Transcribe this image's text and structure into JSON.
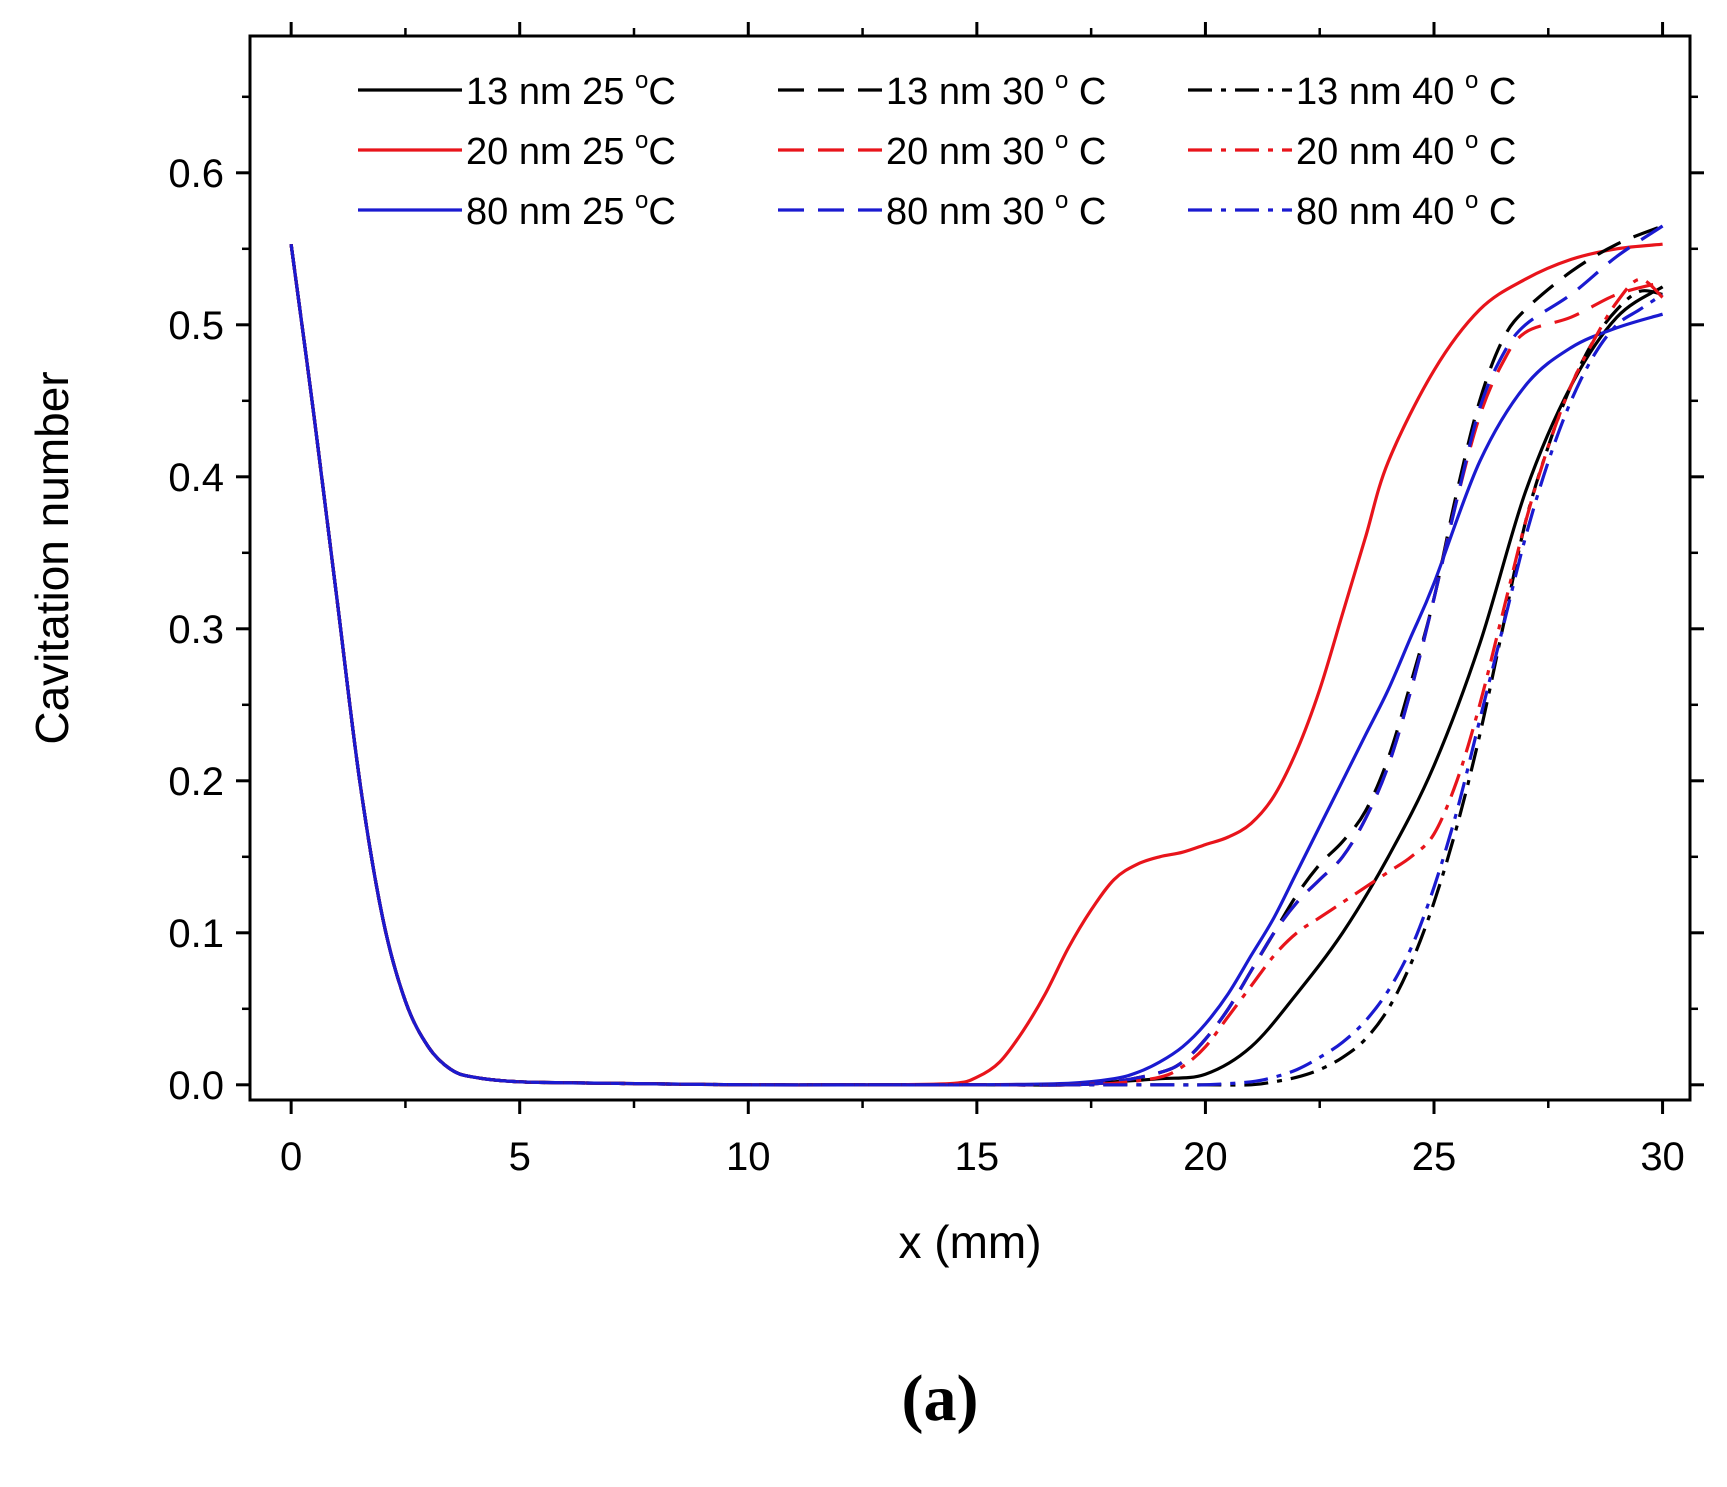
{
  "chart_data": {
    "type": "line",
    "xlabel": "x (mm)",
    "ylabel": "Cavitation number",
    "xlim": [
      -0.9,
      30.6
    ],
    "ylim": [
      -0.01,
      0.69
    ],
    "xticks": [
      0,
      5,
      10,
      15,
      20,
      25,
      30
    ],
    "xtick_labels": [
      "0",
      "5",
      "10",
      "15",
      "20",
      "25",
      "30"
    ],
    "yticks": [
      0.0,
      0.1,
      0.2,
      0.3,
      0.4,
      0.5,
      0.6
    ],
    "ytick_labels": [
      "0.0",
      "0.1",
      "0.2",
      "0.3",
      "0.4",
      "0.5",
      "0.6"
    ],
    "panel_label": "(a)",
    "legend_position": "top",
    "series": [
      {
        "name": "13 nm  25 °C",
        "label_main": "13 nm  25 ",
        "label_sup": "o",
        "label_unit": "C",
        "color": "#000000",
        "dash": "solid",
        "x": [
          0,
          0.5,
          1,
          1.5,
          2,
          2.5,
          3,
          3.5,
          4,
          5,
          7,
          10,
          13,
          15,
          17,
          18,
          19,
          20,
          21,
          22,
          23,
          24,
          25,
          26,
          27,
          28,
          29,
          30
        ],
        "y": [
          0.553,
          0.44,
          0.32,
          0.2,
          0.11,
          0.055,
          0.025,
          0.01,
          0.005,
          0.002,
          0.001,
          0.0,
          0.0,
          0.0,
          0.0,
          0.002,
          0.004,
          0.007,
          0.025,
          0.06,
          0.1,
          0.15,
          0.21,
          0.29,
          0.39,
          0.46,
          0.505,
          0.525
        ]
      },
      {
        "name": "20 nm  25 °C",
        "label_main": "20 nm  25 ",
        "label_sup": "o",
        "label_unit": "C",
        "color": "#e8141b",
        "dash": "solid",
        "x": [
          0,
          0.5,
          1,
          1.5,
          2,
          2.5,
          3,
          3.5,
          4,
          5,
          7,
          10,
          13,
          14.5,
          15,
          15.5,
          16,
          16.5,
          17,
          17.5,
          18,
          18.5,
          19,
          19.5,
          20,
          20.5,
          21,
          21.5,
          22,
          22.5,
          23,
          23.5,
          24,
          25,
          26,
          27,
          28,
          29,
          30
        ],
        "y": [
          0.553,
          0.44,
          0.32,
          0.2,
          0.11,
          0.055,
          0.025,
          0.01,
          0.005,
          0.002,
          0.001,
          0.0,
          0.0,
          0.001,
          0.005,
          0.015,
          0.035,
          0.06,
          0.09,
          0.115,
          0.135,
          0.145,
          0.15,
          0.153,
          0.158,
          0.163,
          0.172,
          0.19,
          0.22,
          0.26,
          0.31,
          0.36,
          0.41,
          0.47,
          0.51,
          0.53,
          0.543,
          0.55,
          0.553
        ]
      },
      {
        "name": "80 nm  25 °C",
        "label_main": "80 nm  25 ",
        "label_sup": "o",
        "label_unit": "C",
        "color": "#1a1ad0",
        "dash": "solid",
        "x": [
          0,
          0.5,
          1,
          1.5,
          2,
          2.5,
          3,
          3.5,
          4,
          5,
          7,
          10,
          13,
          15,
          17,
          18,
          18.5,
          19,
          19.5,
          20,
          20.5,
          21,
          21.5,
          22,
          22.5,
          23,
          23.5,
          24,
          24.5,
          25,
          26,
          27,
          28,
          29,
          30
        ],
        "y": [
          0.553,
          0.44,
          0.32,
          0.2,
          0.11,
          0.055,
          0.025,
          0.01,
          0.005,
          0.002,
          0.001,
          0.0,
          0.0,
          0.0,
          0.001,
          0.004,
          0.008,
          0.015,
          0.025,
          0.04,
          0.06,
          0.085,
          0.11,
          0.14,
          0.17,
          0.2,
          0.23,
          0.26,
          0.295,
          0.33,
          0.41,
          0.46,
          0.485,
          0.498,
          0.507
        ]
      },
      {
        "name": "13 nm  30 ° C",
        "label_main": "13 nm  30 ",
        "label_sup": "o",
        "label_unit": " C",
        "color": "#000000",
        "dash": "dashed",
        "x": [
          0,
          0.5,
          1,
          1.5,
          2,
          2.5,
          3,
          3.5,
          4,
          5,
          7,
          10,
          13,
          15,
          17,
          18,
          19,
          19.5,
          20,
          20.5,
          21,
          21.5,
          22,
          22.5,
          23,
          23.5,
          24,
          24.5,
          25,
          25.5,
          26,
          26.5,
          27,
          28,
          29,
          30
        ],
        "y": [
          0.553,
          0.44,
          0.32,
          0.2,
          0.11,
          0.055,
          0.025,
          0.01,
          0.005,
          0.002,
          0.001,
          0.0,
          0.0,
          0.0,
          0.0,
          0.002,
          0.008,
          0.015,
          0.03,
          0.05,
          0.075,
          0.1,
          0.125,
          0.145,
          0.16,
          0.18,
          0.215,
          0.265,
          0.32,
          0.39,
          0.45,
          0.49,
          0.51,
          0.535,
          0.553,
          0.565
        ]
      },
      {
        "name": "20 nm  30 ° C",
        "label_main": "20 nm  30 ",
        "label_sup": "o",
        "label_unit": " C",
        "color": "#e8141b",
        "dash": "dashed",
        "x": [
          0,
          0.5,
          1,
          1.5,
          2,
          2.5,
          3,
          3.5,
          4,
          5,
          7,
          10,
          13,
          15,
          17,
          18,
          19,
          19.5,
          20,
          20.5,
          21,
          21.5,
          22,
          22.5,
          23,
          23.5,
          24,
          24.5,
          25,
          25.5,
          26,
          26.5,
          27,
          28,
          29,
          30
        ],
        "y": [
          0.553,
          0.44,
          0.32,
          0.2,
          0.11,
          0.055,
          0.025,
          0.01,
          0.005,
          0.002,
          0.001,
          0.0,
          0.0,
          0.0,
          0.0,
          0.002,
          0.008,
          0.015,
          0.03,
          0.05,
          0.075,
          0.1,
          0.12,
          0.135,
          0.15,
          0.175,
          0.21,
          0.26,
          0.32,
          0.385,
          0.44,
          0.475,
          0.495,
          0.505,
          0.52,
          0.528
        ]
      },
      {
        "name": "80 nm  30 ° C",
        "label_main": "80 nm  30 ",
        "label_sup": "o",
        "label_unit": " C",
        "color": "#1a1ad0",
        "dash": "dashed",
        "x": [
          0,
          0.5,
          1,
          1.5,
          2,
          2.5,
          3,
          3.5,
          4,
          5,
          7,
          10,
          13,
          15,
          17,
          18,
          19,
          19.5,
          20,
          20.5,
          21,
          21.5,
          22,
          22.5,
          23,
          23.5,
          24,
          24.5,
          25,
          25.5,
          26,
          26.5,
          27,
          28,
          29,
          30
        ],
        "y": [
          0.553,
          0.44,
          0.32,
          0.2,
          0.11,
          0.055,
          0.025,
          0.01,
          0.005,
          0.002,
          0.001,
          0.0,
          0.0,
          0.0,
          0.0,
          0.002,
          0.008,
          0.015,
          0.03,
          0.05,
          0.075,
          0.1,
          0.12,
          0.135,
          0.15,
          0.175,
          0.21,
          0.26,
          0.32,
          0.385,
          0.445,
          0.48,
          0.5,
          0.52,
          0.545,
          0.565
        ]
      },
      {
        "name": "13 nm  40 ° C",
        "label_main": "13 nm  40 ",
        "label_sup": "o",
        "label_unit": " C",
        "color": "#000000",
        "dash": "dashdot",
        "x": [
          0,
          0.5,
          1,
          1.5,
          2,
          2.5,
          3,
          3.5,
          4,
          5,
          7,
          10,
          13,
          15,
          17,
          19,
          20,
          21,
          21.5,
          22,
          22.5,
          23,
          23.5,
          24,
          24.5,
          25,
          25.5,
          26,
          26.5,
          27,
          27.5,
          28,
          28.5,
          29,
          29.5,
          30
        ],
        "y": [
          0.553,
          0.44,
          0.32,
          0.2,
          0.11,
          0.055,
          0.025,
          0.01,
          0.005,
          0.002,
          0.001,
          0.0,
          0.0,
          0.0,
          0.0,
          0.0,
          0.0,
          0.0,
          0.002,
          0.005,
          0.01,
          0.018,
          0.03,
          0.05,
          0.08,
          0.12,
          0.17,
          0.23,
          0.3,
          0.37,
          0.42,
          0.46,
          0.49,
          0.51,
          0.522,
          0.52
        ]
      },
      {
        "name": "20 nm  40 ° C",
        "label_main": "20 nm  40 ",
        "label_sup": "o",
        "label_unit": " C",
        "color": "#e8141b",
        "dash": "dashdot",
        "x": [
          0,
          0.5,
          1,
          1.5,
          2,
          2.5,
          3,
          3.5,
          4,
          5,
          7,
          10,
          13,
          15,
          17,
          18,
          19,
          19.5,
          20,
          20.5,
          21,
          21.5,
          22,
          22.5,
          23,
          23.5,
          24,
          24.5,
          25,
          25.5,
          26,
          26.5,
          27,
          27.5,
          28,
          28.5,
          29,
          29.5,
          30
        ],
        "y": [
          0.553,
          0.44,
          0.32,
          0.2,
          0.11,
          0.055,
          0.025,
          0.01,
          0.005,
          0.002,
          0.001,
          0.0,
          0.0,
          0.0,
          0.0,
          0.001,
          0.005,
          0.012,
          0.025,
          0.045,
          0.065,
          0.085,
          0.1,
          0.11,
          0.12,
          0.13,
          0.14,
          0.15,
          0.165,
          0.2,
          0.25,
          0.31,
          0.37,
          0.42,
          0.46,
          0.49,
          0.515,
          0.53,
          0.518
        ]
      },
      {
        "name": "80 nm  40 ° C",
        "label_main": "80 nm  40 ",
        "label_sup": "o",
        "label_unit": " C",
        "color": "#1a1ad0",
        "dash": "dashdot",
        "x": [
          0,
          0.5,
          1,
          1.5,
          2,
          2.5,
          3,
          3.5,
          4,
          5,
          7,
          10,
          13,
          15,
          17,
          19,
          20,
          21,
          21.5,
          22,
          22.5,
          23,
          23.5,
          24,
          24.5,
          25,
          25.5,
          26,
          26.5,
          27,
          27.5,
          28,
          28.5,
          29,
          29.5,
          30
        ],
        "y": [
          0.553,
          0.44,
          0.32,
          0.2,
          0.11,
          0.055,
          0.025,
          0.01,
          0.005,
          0.002,
          0.001,
          0.0,
          0.0,
          0.0,
          0.0,
          0.0,
          0.0,
          0.002,
          0.005,
          0.01,
          0.018,
          0.028,
          0.042,
          0.062,
          0.09,
          0.13,
          0.18,
          0.24,
          0.3,
          0.36,
          0.41,
          0.45,
          0.48,
          0.5,
          0.51,
          0.52
        ]
      }
    ]
  }
}
